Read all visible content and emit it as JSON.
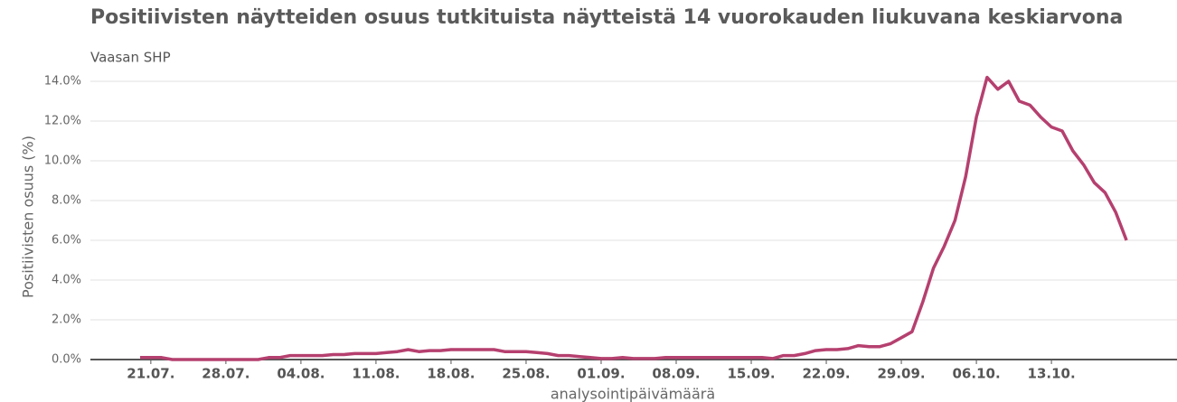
{
  "chart_data": {
    "type": "line",
    "title": "Positiivisten näytteiden osuus tutkituista näytteistä 14 vuorokauden liukuvana keskiarvona",
    "subtitle": "Vaasan SHP",
    "y_label": "Positiivisten osuus (%)",
    "x_label": "analysointipäivämäärä",
    "categories": [
      null,
      "21.07.",
      null,
      null,
      null,
      null,
      null,
      null,
      "28.07.",
      null,
      null,
      null,
      null,
      null,
      null,
      "04.08.",
      null,
      null,
      null,
      null,
      null,
      null,
      "11.08.",
      null,
      null,
      null,
      null,
      null,
      null,
      "18.08.",
      null,
      null,
      null,
      null,
      null,
      null,
      "25.08.",
      null,
      null,
      null,
      null,
      null,
      null,
      "01.09.",
      null,
      null,
      null,
      null,
      null,
      null,
      "08.09.",
      null,
      null,
      null,
      null,
      null,
      null,
      "15.09.",
      null,
      null,
      null,
      null,
      null,
      null,
      "22.09.",
      null,
      null,
      null,
      null,
      null,
      null,
      "29.09.",
      null,
      null,
      null,
      null,
      null,
      null,
      "06.10.",
      null,
      null,
      null,
      null,
      null,
      null,
      "13.10.",
      null,
      null,
      null,
      null,
      null,
      null,
      null
    ],
    "series": [
      {
        "name": "Vaasan SHP",
        "color": "#b5406f",
        "values": [
          0.1,
          0.1,
          0.1,
          0,
          0,
          0,
          0,
          0,
          0,
          0,
          0,
          0,
          0.1,
          0.1,
          0.2,
          0.2,
          0.2,
          0.2,
          0.25,
          0.25,
          0.3,
          0.3,
          0.3,
          0.35,
          0.4,
          0.5,
          0.4,
          0.45,
          0.45,
          0.5,
          0.5,
          0.5,
          0.5,
          0.5,
          0.4,
          0.4,
          0.4,
          0.35,
          0.3,
          0.2,
          0.2,
          0.15,
          0.1,
          0.05,
          0.05,
          0.1,
          0.05,
          0.05,
          0.05,
          0.1,
          0.1,
          0.1,
          0.1,
          0.1,
          0.1,
          0.1,
          0.1,
          0.1,
          0.1,
          0.05,
          0.2,
          0.2,
          0.3,
          0.45,
          0.5,
          0.5,
          0.55,
          0.7,
          0.65,
          0.65,
          0.8,
          1.1,
          1.4,
          2.9,
          4.6,
          5.7,
          7.0,
          9.2,
          12.2,
          14.2,
          13.6,
          14.0,
          13.0,
          12.8,
          12.2,
          11.7,
          11.5,
          10.5,
          9.8,
          8.9,
          8.4,
          7.4,
          6.0
        ]
      }
    ],
    "ylim": [
      0,
      14.5
    ],
    "yticks": [
      {
        "value": 0,
        "label": "0.0%"
      },
      {
        "value": 2,
        "label": "2.0%"
      },
      {
        "value": 4,
        "label": "4.0%"
      },
      {
        "value": 6,
        "label": "6.0%"
      },
      {
        "value": 8,
        "label": "8.0%"
      },
      {
        "value": 10,
        "label": "10.0%"
      },
      {
        "value": 12,
        "label": "12.0%"
      },
      {
        "value": 14,
        "label": "14.0%"
      }
    ],
    "grid": true
  }
}
